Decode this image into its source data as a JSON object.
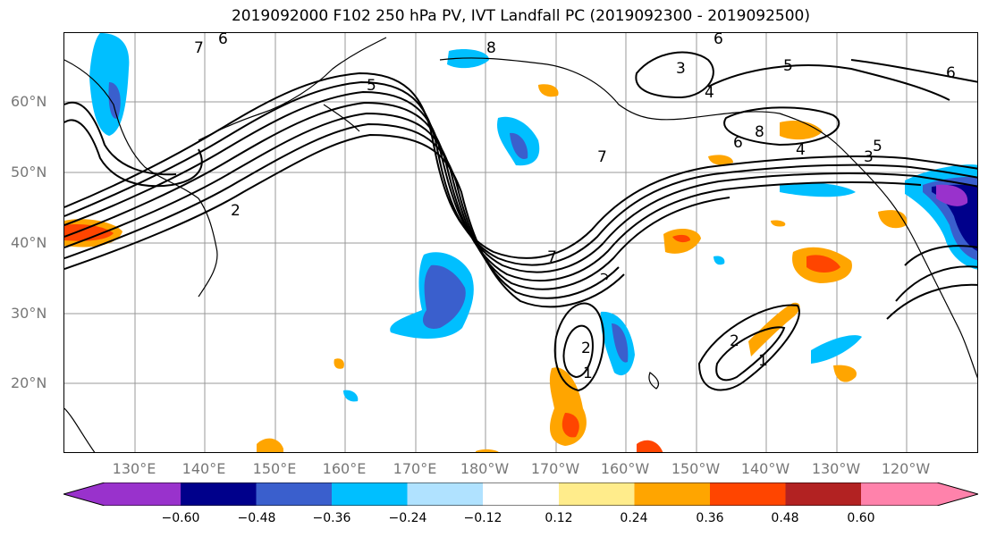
{
  "title": "2019092000 F102 250 hPa PV, IVT Landfall PC (2019092300 - 2019092500)",
  "map": {
    "lat_labels": [
      "60°N",
      "50°N",
      "40°N",
      "30°N",
      "20°N"
    ],
    "lon_labels": [
      "130°E",
      "140°E",
      "150°E",
      "160°E",
      "170°E",
      "180°W",
      "170°W",
      "160°W",
      "150°W",
      "140°W",
      "130°W",
      "120°W"
    ],
    "contour_labels": [
      "6",
      "7",
      "8",
      "6",
      "3",
      "5",
      "6",
      "4",
      "8",
      "6",
      "5",
      "4",
      "3",
      "7",
      "5",
      "2",
      "7",
      "2",
      "1",
      "2",
      "1"
    ]
  },
  "colorbar": {
    "tick_labels": [
      "−0.60",
      "−0.48",
      "−0.36",
      "−0.24",
      "−0.12",
      "0.12",
      "0.24",
      "0.36",
      "0.48",
      "0.60"
    ],
    "colors": [
      "#9932cc",
      "#00008b",
      "#3a5fcd",
      "#00bfff",
      "#b0e2ff",
      "#ffffff",
      "#ffec8b",
      "#ffa500",
      "#ff4500",
      "#b22222",
      "#ff82ab"
    ]
  }
}
